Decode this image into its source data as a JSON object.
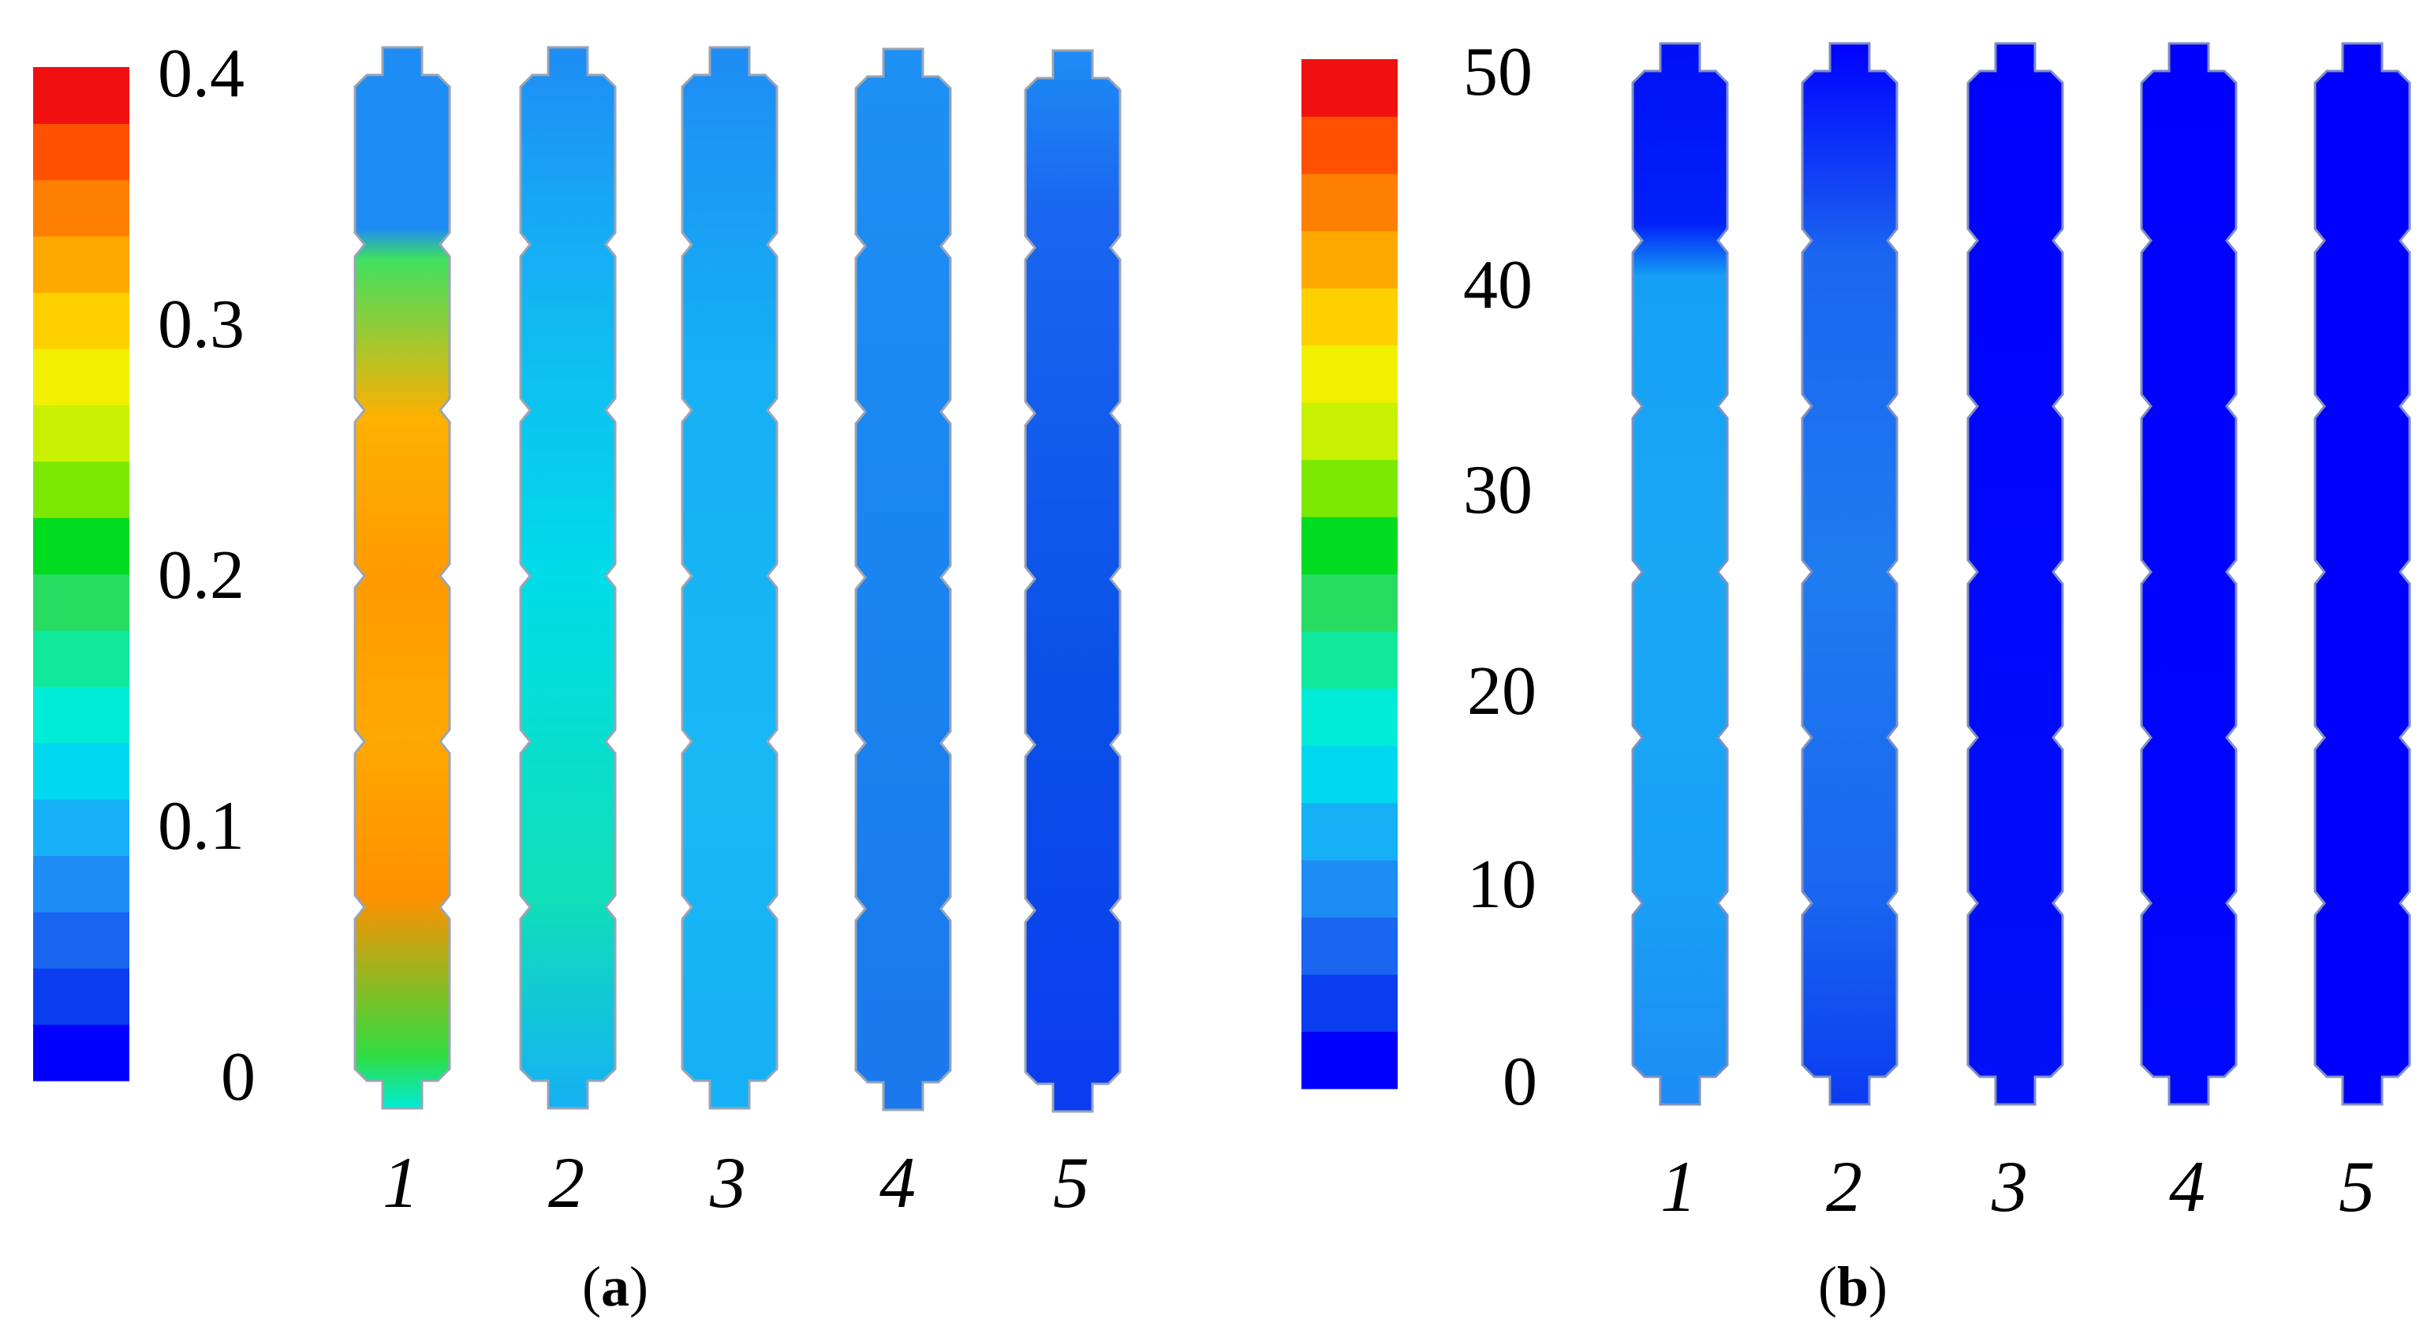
{
  "figure": {
    "panels": [
      {
        "id": "a",
        "label": "a",
        "colorbar": {
          "min": 0,
          "max": 0.4,
          "ticks": [
            "0.4",
            "0.3",
            "0.2",
            "0.1",
            "0"
          ]
        },
        "columns": [
          "1",
          "2",
          "3",
          "4",
          "5"
        ],
        "column_levels": [
          0.29,
          0.14,
          0.12,
          0.1,
          0.075
        ]
      },
      {
        "id": "b",
        "label": "b",
        "colorbar": {
          "min": 0,
          "max": 50,
          "ticks": [
            "50",
            "40",
            "30",
            "20",
            "10",
            "0"
          ]
        },
        "columns": [
          "1",
          "2",
          "3",
          "4",
          "5"
        ],
        "column_levels": [
          0.2,
          0.1,
          0.04,
          0.02,
          0.0
        ]
      }
    ],
    "colors": {
      "scale": [
        "#0000ff",
        "#0a3cf0",
        "#1a66f0",
        "#1e8cf5",
        "#15b0f5",
        "#00d8f0",
        "#00ecd8",
        "#10e89c",
        "#28dc62",
        "#00dc20",
        "#7ce800",
        "#c8f000",
        "#f0f000",
        "#ffd000",
        "#ffa800",
        "#ff8000",
        "#ff5000",
        "#f01010"
      ]
    }
  }
}
